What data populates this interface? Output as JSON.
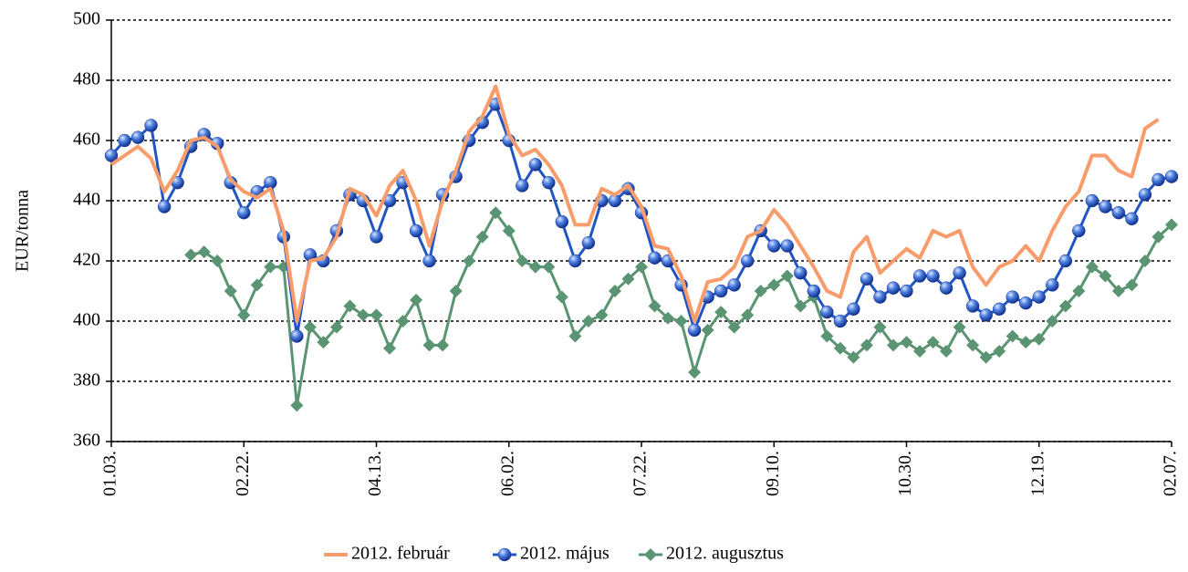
{
  "chart_data": {
    "type": "line",
    "y_label": "EUR/tonna",
    "categories": [
      "01.03.",
      null,
      null,
      null,
      null,
      null,
      null,
      null,
      null,
      null,
      "02.22.",
      null,
      null,
      null,
      null,
      null,
      null,
      null,
      null,
      null,
      "04.13.",
      null,
      null,
      null,
      null,
      null,
      null,
      null,
      null,
      null,
      "06.02.",
      null,
      null,
      null,
      null,
      null,
      null,
      null,
      null,
      null,
      "07.22.",
      null,
      null,
      null,
      null,
      null,
      null,
      null,
      null,
      null,
      "09.10.",
      null,
      null,
      null,
      null,
      null,
      null,
      null,
      null,
      null,
      "10.30.",
      null,
      null,
      null,
      null,
      null,
      null,
      null,
      null,
      null,
      "12.19.",
      null,
      null,
      null,
      null,
      null,
      null,
      null,
      null,
      null,
      "02.07."
    ],
    "series": [
      {
        "name": "2012. február",
        "color": "#f79c6a",
        "marker": "none",
        "values": [
          452,
          455,
          458,
          454,
          443,
          450,
          460,
          461,
          458,
          447,
          443,
          441,
          444,
          430,
          400,
          420,
          421,
          428,
          444,
          442,
          435,
          445,
          450,
          440,
          425,
          440,
          450,
          463,
          468,
          478,
          462,
          455,
          457,
          452,
          445,
          432,
          432,
          444,
          442,
          445,
          438,
          425,
          424,
          415,
          400,
          413,
          414,
          418,
          428,
          430,
          437,
          432,
          425,
          418,
          410,
          408,
          423,
          428,
          416,
          420,
          424,
          421,
          430,
          428,
          430,
          418,
          412,
          418,
          420,
          425,
          420,
          430,
          438,
          443,
          455,
          455,
          450,
          448,
          464,
          467,
          null
        ]
      },
      {
        "name": "2012. május",
        "color": "#2255c4",
        "marker": "circle",
        "values": [
          455,
          460,
          461,
          465,
          438,
          446,
          458,
          462,
          459,
          446,
          436,
          443,
          446,
          428,
          395,
          422,
          420,
          430,
          442,
          440,
          428,
          440,
          446,
          430,
          420,
          442,
          448,
          460,
          466,
          472,
          460,
          445,
          452,
          446,
          433,
          420,
          426,
          440,
          440,
          444,
          436,
          421,
          420,
          412,
          397,
          408,
          410,
          412,
          420,
          430,
          425,
          425,
          416,
          410,
          403,
          400,
          404,
          414,
          408,
          411,
          410,
          415,
          415,
          411,
          416,
          405,
          402,
          404,
          408,
          406,
          408,
          412,
          420,
          430,
          440,
          438,
          436,
          434,
          442,
          447,
          448
        ]
      },
      {
        "name": "2012. augusztus",
        "color": "#5a9473",
        "marker": "diamond",
        "values": [
          null,
          null,
          null,
          null,
          null,
          null,
          422,
          423,
          420,
          410,
          402,
          412,
          418,
          418,
          372,
          398,
          393,
          398,
          405,
          402,
          402,
          391,
          400,
          407,
          392,
          392,
          410,
          420,
          428,
          436,
          430,
          420,
          418,
          418,
          408,
          395,
          400,
          402,
          410,
          414,
          418,
          405,
          401,
          400,
          383,
          397,
          403,
          398,
          402,
          410,
          412,
          415,
          405,
          408,
          395,
          391,
          388,
          392,
          398,
          392,
          393,
          390,
          393,
          390,
          398,
          392,
          388,
          390,
          395,
          393,
          394,
          400,
          405,
          410,
          418,
          415,
          410,
          412,
          420,
          428,
          432
        ]
      }
    ],
    "ylim": [
      360,
      500
    ],
    "yticks": [
      360,
      380,
      400,
      420,
      440,
      460,
      480,
      500
    ],
    "grid": true,
    "legend": "bottom"
  }
}
